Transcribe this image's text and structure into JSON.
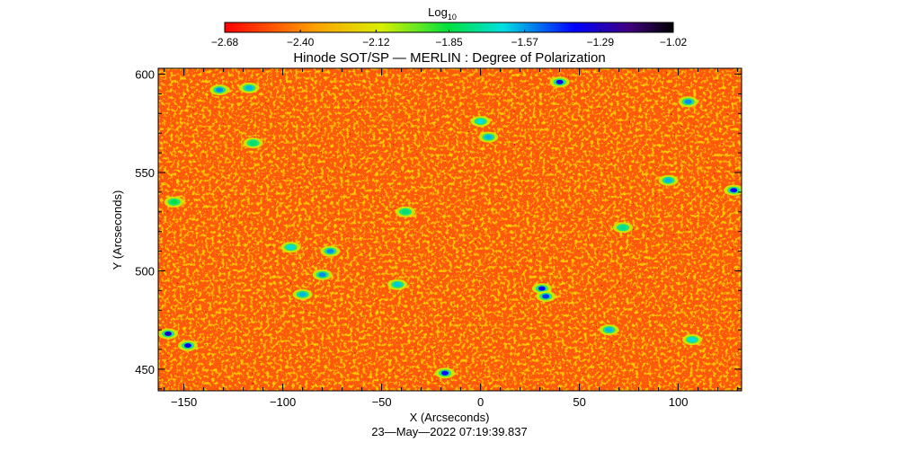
{
  "chart_data": {
    "type": "heatmap",
    "title": "Hinode SOT/SP — MERLIN : Degree of Polarization",
    "xlabel": "X (Arcseconds)",
    "ylabel": "Y (Arcseconds)",
    "timestamp": "23—May—2022 07:19:39.837",
    "xlim": [
      -163,
      132
    ],
    "ylim": [
      439,
      603
    ],
    "x_ticks": [
      -150,
      -100,
      -50,
      0,
      50,
      100
    ],
    "x_tick_labels": [
      "−150",
      "−100",
      "−50",
      "0",
      "50",
      "100"
    ],
    "y_ticks": [
      450,
      500,
      550,
      600
    ],
    "y_tick_labels": [
      "450",
      "500",
      "550",
      "600"
    ],
    "colorbar": {
      "label_main": "Log",
      "label_sub": "10",
      "min": -2.68,
      "max": -1.02,
      "colormap": "rainbow (red→yellow→green→cyan→blue→black)",
      "ticks": [
        -2.68,
        -2.4,
        -2.12,
        -1.85,
        -1.57,
        -1.29,
        -1.02
      ],
      "tick_labels": [
        "−2.68",
        "−2.40",
        "−2.12",
        "−1.85",
        "−1.57",
        "−1.29",
        "−1.02"
      ]
    },
    "high_value_regions": [
      {
        "x": -148,
        "y": 462,
        "value": -1.35
      },
      {
        "x": -158,
        "y": 468,
        "value": -1.3
      },
      {
        "x": -132,
        "y": 592,
        "value": -1.55
      },
      {
        "x": -117,
        "y": 593,
        "value": -1.6
      },
      {
        "x": -96,
        "y": 512,
        "value": -1.65
      },
      {
        "x": -90,
        "y": 488,
        "value": -1.6
      },
      {
        "x": -76,
        "y": 510,
        "value": -1.55
      },
      {
        "x": -80,
        "y": 498,
        "value": -1.55
      },
      {
        "x": -42,
        "y": 493,
        "value": -1.62
      },
      {
        "x": -18,
        "y": 448,
        "value": -1.4
      },
      {
        "x": 0,
        "y": 576,
        "value": -1.65
      },
      {
        "x": 4,
        "y": 568,
        "value": -1.6
      },
      {
        "x": 31,
        "y": 491,
        "value": -1.4
      },
      {
        "x": 33,
        "y": 487,
        "value": -1.45
      },
      {
        "x": 40,
        "y": 596,
        "value": -1.35
      },
      {
        "x": 95,
        "y": 546,
        "value": -1.6
      },
      {
        "x": 105,
        "y": 586,
        "value": -1.55
      },
      {
        "x": 128,
        "y": 541,
        "value": -1.4
      },
      {
        "x": 65,
        "y": 470,
        "value": -1.6
      },
      {
        "x": 107,
        "y": 465,
        "value": -1.65
      },
      {
        "x": 72,
        "y": 522,
        "value": -1.75
      },
      {
        "x": -115,
        "y": 565,
        "value": -1.8
      },
      {
        "x": -38,
        "y": 530,
        "value": -1.8
      },
      {
        "x": -155,
        "y": 535,
        "value": -1.85
      }
    ]
  }
}
